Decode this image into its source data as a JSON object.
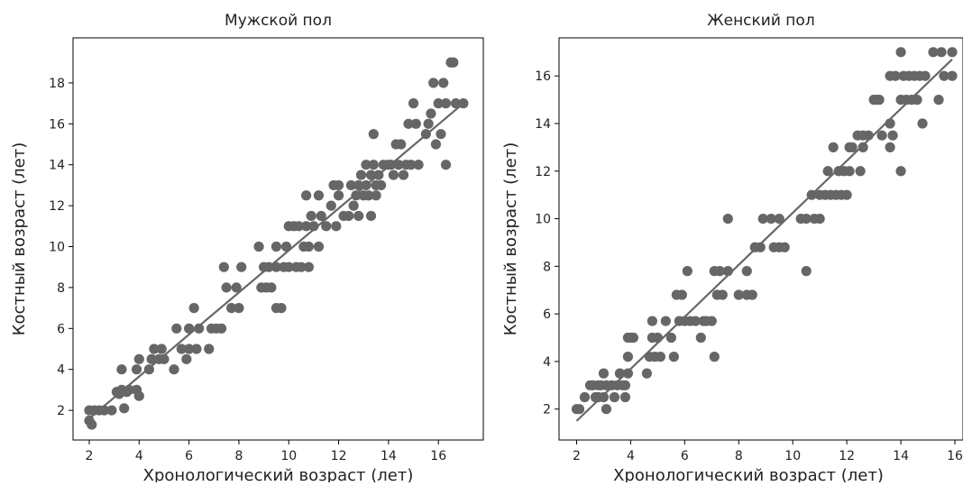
{
  "chart_data": [
    {
      "type": "scatter",
      "title": "Мужской пол",
      "xlabel": "Хронологический возраст (лет)",
      "ylabel": "Костный возраст (лет)",
      "xlim": [
        1.35,
        17.8
      ],
      "ylim": [
        0.55,
        20.2
      ],
      "xticks": [
        2,
        4,
        6,
        8,
        10,
        12,
        14,
        16
      ],
      "yticks": [
        2,
        4,
        6,
        8,
        10,
        12,
        14,
        16,
        18
      ],
      "grid": false,
      "trend_line": {
        "x": [
          2.0,
          17.0
        ],
        "y": [
          1.6,
          17.0
        ]
      },
      "points": [
        [
          2.0,
          2.0
        ],
        [
          2.0,
          1.5
        ],
        [
          2.1,
          1.3
        ],
        [
          2.2,
          2.0
        ],
        [
          2.4,
          2.0
        ],
        [
          2.6,
          2.0
        ],
        [
          2.9,
          2.0
        ],
        [
          3.1,
          2.9
        ],
        [
          3.2,
          2.8
        ],
        [
          3.3,
          3.0
        ],
        [
          3.3,
          4.0
        ],
        [
          3.4,
          2.1
        ],
        [
          3.5,
          2.9
        ],
        [
          3.6,
          3.0
        ],
        [
          3.9,
          4.0
        ],
        [
          3.9,
          3.0
        ],
        [
          4.0,
          2.7
        ],
        [
          4.0,
          4.5
        ],
        [
          4.4,
          4.0
        ],
        [
          4.5,
          4.5
        ],
        [
          4.6,
          5.0
        ],
        [
          4.8,
          4.5
        ],
        [
          4.9,
          5.0
        ],
        [
          5.0,
          4.5
        ],
        [
          5.4,
          4.0
        ],
        [
          5.5,
          6.0
        ],
        [
          5.7,
          5.0
        ],
        [
          5.9,
          4.5
        ],
        [
          6.0,
          5.0
        ],
        [
          6.0,
          6.0
        ],
        [
          6.2,
          7.0
        ],
        [
          6.3,
          5.0
        ],
        [
          6.4,
          6.0
        ],
        [
          6.8,
          5.0
        ],
        [
          6.9,
          6.0
        ],
        [
          7.1,
          6.0
        ],
        [
          7.3,
          6.0
        ],
        [
          7.4,
          9.0
        ],
        [
          7.5,
          8.0
        ],
        [
          7.7,
          7.0
        ],
        [
          7.9,
          8.0
        ],
        [
          8.0,
          7.0
        ],
        [
          8.1,
          9.0
        ],
        [
          8.8,
          10.0
        ],
        [
          8.9,
          8.0
        ],
        [
          9.0,
          9.0
        ],
        [
          9.1,
          8.0
        ],
        [
          9.2,
          9.0
        ],
        [
          9.3,
          8.0
        ],
        [
          9.5,
          9.0
        ],
        [
          9.5,
          10.0
        ],
        [
          9.5,
          7.0
        ],
        [
          9.7,
          7.0
        ],
        [
          9.8,
          9.0
        ],
        [
          9.9,
          10.0
        ],
        [
          10.0,
          11.0
        ],
        [
          10.0,
          9.0
        ],
        [
          10.2,
          11.0
        ],
        [
          10.3,
          9.0
        ],
        [
          10.4,
          11.0
        ],
        [
          10.5,
          9.0
        ],
        [
          10.6,
          10.0
        ],
        [
          10.7,
          11.0
        ],
        [
          10.7,
          12.5
        ],
        [
          10.8,
          10.0
        ],
        [
          10.8,
          9.0
        ],
        [
          10.9,
          11.5
        ],
        [
          11.0,
          11.0
        ],
        [
          11.2,
          10.0
        ],
        [
          11.2,
          12.5
        ],
        [
          11.3,
          11.5
        ],
        [
          11.5,
          11.0
        ],
        [
          11.7,
          12.0
        ],
        [
          11.8,
          13.0
        ],
        [
          11.9,
          11.0
        ],
        [
          12.0,
          12.5
        ],
        [
          12.0,
          13.0
        ],
        [
          12.2,
          11.5
        ],
        [
          12.4,
          11.5
        ],
        [
          12.5,
          13.0
        ],
        [
          12.6,
          12.0
        ],
        [
          12.7,
          12.5
        ],
        [
          12.8,
          13.0
        ],
        [
          12.8,
          11.5
        ],
        [
          12.9,
          13.5
        ],
        [
          13.0,
          12.5
        ],
        [
          13.1,
          14.0
        ],
        [
          13.1,
          13.0
        ],
        [
          13.2,
          12.5
        ],
        [
          13.3,
          11.5
        ],
        [
          13.3,
          13.5
        ],
        [
          13.4,
          14.0
        ],
        [
          13.4,
          15.5
        ],
        [
          13.5,
          13.0
        ],
        [
          13.5,
          12.5
        ],
        [
          13.6,
          13.5
        ],
        [
          13.7,
          13.0
        ],
        [
          13.8,
          14.0
        ],
        [
          14.0,
          14.0
        ],
        [
          14.1,
          14.0
        ],
        [
          14.2,
          13.5
        ],
        [
          14.3,
          15.0
        ],
        [
          14.4,
          14.0
        ],
        [
          14.5,
          15.0
        ],
        [
          14.6,
          13.5
        ],
        [
          14.7,
          14.0
        ],
        [
          14.8,
          16.0
        ],
        [
          14.9,
          14.0
        ],
        [
          15.0,
          17.0
        ],
        [
          15.1,
          16.0
        ],
        [
          15.2,
          14.0
        ],
        [
          15.5,
          15.5
        ],
        [
          15.6,
          16.0
        ],
        [
          15.7,
          16.5
        ],
        [
          15.8,
          18.0
        ],
        [
          15.9,
          15.0
        ],
        [
          16.0,
          17.0
        ],
        [
          16.1,
          15.5
        ],
        [
          16.2,
          18.0
        ],
        [
          16.3,
          14.0
        ],
        [
          16.3,
          17.0
        ],
        [
          16.5,
          19.0
        ],
        [
          16.6,
          19.0
        ],
        [
          16.7,
          17.0
        ],
        [
          17.0,
          17.0
        ]
      ]
    },
    {
      "type": "scatter",
      "title": "Женский пол",
      "xlabel": "Хронологический возраст (лет)",
      "ylabel": "Костный возраст (лет)",
      "xlim": [
        1.35,
        16.3
      ],
      "ylim": [
        0.7,
        17.6
      ],
      "xticks": [
        2,
        4,
        6,
        8,
        10,
        12,
        14,
        16
      ],
      "yticks": [
        2,
        4,
        6,
        8,
        10,
        12,
        14,
        16
      ],
      "grid": false,
      "trend_line": {
        "x": [
          2.0,
          15.9
        ],
        "y": [
          1.5,
          16.7
        ]
      },
      "points": [
        [
          2.0,
          2.0
        ],
        [
          2.1,
          2.0
        ],
        [
          2.3,
          2.5
        ],
        [
          2.5,
          3.0
        ],
        [
          2.6,
          3.0
        ],
        [
          2.7,
          2.5
        ],
        [
          2.8,
          3.0
        ],
        [
          2.8,
          2.5
        ],
        [
          2.9,
          3.0
        ],
        [
          3.0,
          3.5
        ],
        [
          3.0,
          2.5
        ],
        [
          3.1,
          3.0
        ],
        [
          3.1,
          2.0
        ],
        [
          3.3,
          3.0
        ],
        [
          3.4,
          2.5
        ],
        [
          3.5,
          3.0
        ],
        [
          3.6,
          3.5
        ],
        [
          3.7,
          3.0
        ],
        [
          3.8,
          3.0
        ],
        [
          3.8,
          2.5
        ],
        [
          3.9,
          3.5
        ],
        [
          3.9,
          4.2
        ],
        [
          3.9,
          5.0
        ],
        [
          4.0,
          5.0
        ],
        [
          4.1,
          5.0
        ],
        [
          4.6,
          3.5
        ],
        [
          4.7,
          4.2
        ],
        [
          4.8,
          5.0
        ],
        [
          4.8,
          5.7
        ],
        [
          4.9,
          4.2
        ],
        [
          5.0,
          5.0
        ],
        [
          5.1,
          4.2
        ],
        [
          5.3,
          5.7
        ],
        [
          5.5,
          5.0
        ],
        [
          5.6,
          4.2
        ],
        [
          5.7,
          6.8
        ],
        [
          5.8,
          5.7
        ],
        [
          5.9,
          6.8
        ],
        [
          6.0,
          5.7
        ],
        [
          6.1,
          7.8
        ],
        [
          6.2,
          5.7
        ],
        [
          6.4,
          5.7
        ],
        [
          6.6,
          5.0
        ],
        [
          6.7,
          5.7
        ],
        [
          6.8,
          5.7
        ],
        [
          7.0,
          5.7
        ],
        [
          7.1,
          7.8
        ],
        [
          7.1,
          4.2
        ],
        [
          7.2,
          6.8
        ],
        [
          7.3,
          7.8
        ],
        [
          7.4,
          6.8
        ],
        [
          7.6,
          7.8
        ],
        [
          7.6,
          10.0
        ],
        [
          8.0,
          6.8
        ],
        [
          8.3,
          7.8
        ],
        [
          8.3,
          6.8
        ],
        [
          8.5,
          6.8
        ],
        [
          8.6,
          8.8
        ],
        [
          8.8,
          8.8
        ],
        [
          8.9,
          10.0
        ],
        [
          9.2,
          10.0
        ],
        [
          9.3,
          8.8
        ],
        [
          9.5,
          8.8
        ],
        [
          9.5,
          10.0
        ],
        [
          9.7,
          8.8
        ],
        [
          10.3,
          10.0
        ],
        [
          10.5,
          7.8
        ],
        [
          10.5,
          10.0
        ],
        [
          10.7,
          11.0
        ],
        [
          10.8,
          10.0
        ],
        [
          11.0,
          11.0
        ],
        [
          11.0,
          10.0
        ],
        [
          11.2,
          11.0
        ],
        [
          11.3,
          12.0
        ],
        [
          11.4,
          11.0
        ],
        [
          11.5,
          13.0
        ],
        [
          11.6,
          11.0
        ],
        [
          11.7,
          12.0
        ],
        [
          11.8,
          11.0
        ],
        [
          11.9,
          12.0
        ],
        [
          12.0,
          11.0
        ],
        [
          12.1,
          12.0
        ],
        [
          12.1,
          13.0
        ],
        [
          12.2,
          13.0
        ],
        [
          12.4,
          13.5
        ],
        [
          12.5,
          12.0
        ],
        [
          12.6,
          13.0
        ],
        [
          12.6,
          13.5
        ],
        [
          12.8,
          13.5
        ],
        [
          13.0,
          15.0
        ],
        [
          13.1,
          15.0
        ],
        [
          13.2,
          15.0
        ],
        [
          13.3,
          13.5
        ],
        [
          13.6,
          14.0
        ],
        [
          13.6,
          13.0
        ],
        [
          13.6,
          16.0
        ],
        [
          13.7,
          13.5
        ],
        [
          13.8,
          16.0
        ],
        [
          14.0,
          17.0
        ],
        [
          14.0,
          12.0
        ],
        [
          14.0,
          15.0
        ],
        [
          14.1,
          16.0
        ],
        [
          14.2,
          15.0
        ],
        [
          14.3,
          16.0
        ],
        [
          14.4,
          15.0
        ],
        [
          14.5,
          16.0
        ],
        [
          14.6,
          15.0
        ],
        [
          14.7,
          16.0
        ],
        [
          14.8,
          14.0
        ],
        [
          14.9,
          16.0
        ],
        [
          15.2,
          17.0
        ],
        [
          15.4,
          15.0
        ],
        [
          15.5,
          17.0
        ],
        [
          15.6,
          16.0
        ],
        [
          15.9,
          17.0
        ],
        [
          15.9,
          16.0
        ]
      ]
    }
  ]
}
